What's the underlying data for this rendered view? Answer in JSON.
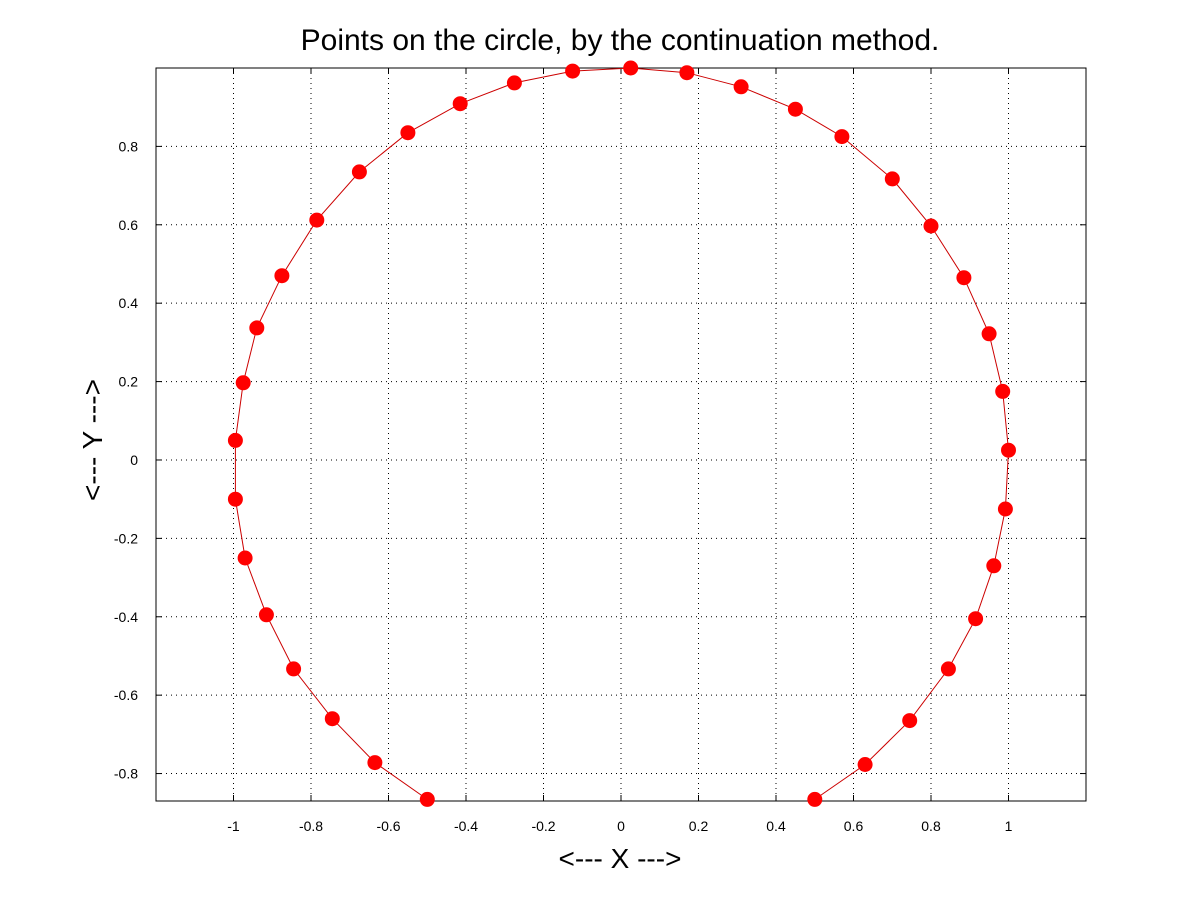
{
  "chart_data": {
    "type": "line",
    "title": "Points on the circle, by the continuation method.",
    "xlabel": "<--- X --->",
    "ylabel": "<--- Y --->",
    "xlim": [
      -1.2,
      1.2
    ],
    "ylim": [
      -0.87,
      1.0
    ],
    "xticks": [
      -1,
      -0.8,
      -0.6,
      -0.4,
      -0.2,
      0,
      0.2,
      0.4,
      0.6,
      0.8,
      1
    ],
    "xtick_labels": [
      "-1",
      "-0.8",
      "-0.6",
      "-0.4",
      "-0.2",
      "0",
      "0.2",
      "0.4",
      "0.6",
      "0.8",
      "1"
    ],
    "yticks": [
      -0.8,
      -0.6,
      -0.4,
      -0.2,
      0,
      0.2,
      0.4,
      0.6,
      0.8
    ],
    "ytick_labels": [
      "-0.8",
      "-0.6",
      "-0.4",
      "-0.2",
      "0",
      "0.2",
      "0.4",
      "0.6",
      "0.8"
    ],
    "grid": true,
    "line_color": "#cc0000",
    "marker_color": "#ff0000",
    "series": [
      {
        "x": [
          0.5,
          0.63,
          0.745,
          0.845,
          0.915,
          0.962,
          0.992,
          1.0,
          0.985,
          0.95,
          0.885,
          0.8,
          0.7,
          0.57,
          0.45,
          0.31,
          0.17,
          0.025,
          -0.125,
          -0.275,
          -0.415,
          -0.55,
          -0.675,
          -0.785,
          -0.875,
          -0.94,
          -0.975,
          -0.995,
          -0.995,
          -0.97,
          -0.915,
          -0.845,
          -0.745,
          -0.635,
          -0.5
        ],
        "y": [
          -0.866,
          -0.777,
          -0.665,
          -0.533,
          -0.405,
          -0.27,
          -0.125,
          0.025,
          0.175,
          0.322,
          0.465,
          0.597,
          0.717,
          0.825,
          0.895,
          0.952,
          0.988,
          1.0,
          0.992,
          0.962,
          0.909,
          0.835,
          0.735,
          0.612,
          0.47,
          0.337,
          0.197,
          0.05,
          -0.1,
          -0.25,
          -0.395,
          -0.533,
          -0.66,
          -0.772,
          -0.866
        ]
      }
    ]
  }
}
